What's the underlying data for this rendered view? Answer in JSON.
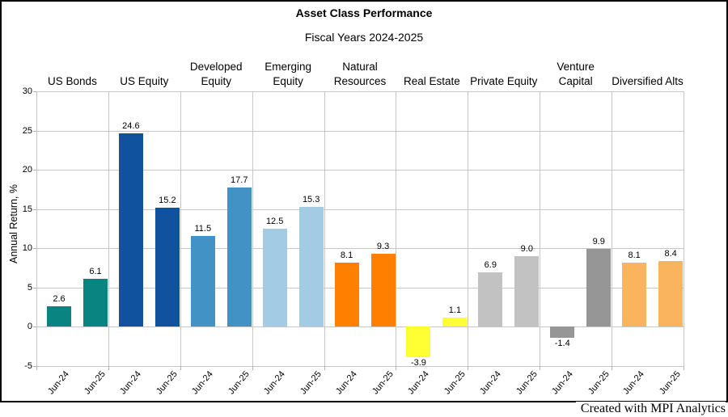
{
  "title": "Asset Class Performance",
  "subtitle": "Fiscal Years 2024-2025",
  "ylabel": "Annual Return, %",
  "credit": "Created with MPI Analytics",
  "colors": {
    "grid": "#c6c6c6",
    "axis": "#b0b0b0",
    "text": "#000000",
    "background": "#ffffff"
  },
  "chart_data": {
    "type": "bar",
    "title": "Asset Class Performance",
    "subtitle": "Fiscal Years 2024-2025",
    "xlabel": "",
    "ylabel": "Annual Return, %",
    "ylim": [
      -5,
      30
    ],
    "yticks": [
      30,
      25,
      20,
      15,
      10,
      5,
      0,
      -5
    ],
    "grid": true,
    "legend": "none",
    "categories": [
      "Jun-24",
      "Jun-25"
    ],
    "groups": [
      {
        "label": "US Bonds",
        "color": "#0a8481",
        "values": [
          2.6,
          6.1
        ]
      },
      {
        "label": "US Equity",
        "color": "#10529e",
        "values": [
          24.6,
          15.2
        ]
      },
      {
        "label": "Developed Equity",
        "color": "#4292c6",
        "values": [
          11.5,
          17.7
        ]
      },
      {
        "label": "Emerging Equity",
        "color": "#a3cbe3",
        "values": [
          12.5,
          15.3
        ]
      },
      {
        "label": "Natural Resources",
        "color": "#ff8000",
        "values": [
          8.1,
          9.3
        ]
      },
      {
        "label": "Real Estate",
        "color": "#ffff33",
        "values": [
          -3.9,
          1.1
        ]
      },
      {
        "label": "Private Equity",
        "color": "#c2c2c2",
        "values": [
          6.9,
          9.0
        ]
      },
      {
        "label": "Venture Capital",
        "color": "#969696",
        "values": [
          -1.4,
          9.9
        ]
      },
      {
        "label": "Diversified Alts",
        "color": "#fbb45e",
        "values": [
          8.1,
          8.4
        ]
      }
    ]
  }
}
